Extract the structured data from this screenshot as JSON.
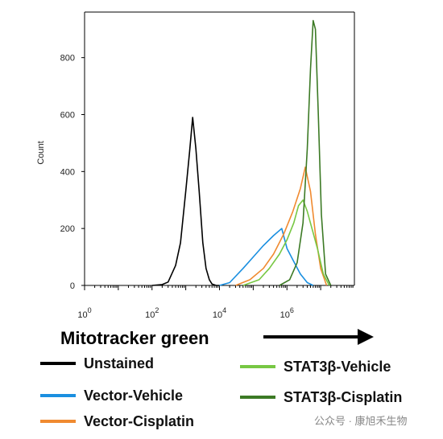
{
  "chart_data": {
    "type": "line",
    "title": "",
    "xlabel": "Mitotracker green",
    "ylabel": "Count",
    "x_scale": "log10",
    "xlim": [
      1,
      100000000
    ],
    "ylim": [
      0,
      960
    ],
    "x_ticks": [
      {
        "value": 1,
        "base": "10",
        "exp": "0"
      },
      {
        "value": 100,
        "base": "10",
        "exp": "2"
      },
      {
        "value": 10000,
        "base": "10",
        "exp": "4"
      },
      {
        "value": 1000000,
        "base": "10",
        "exp": "6"
      }
    ],
    "y_ticks": [
      0,
      200,
      400,
      600,
      800
    ],
    "y_tick_labels": [
      "0",
      "200",
      "400",
      "600",
      "800"
    ],
    "grid": false,
    "legend_position": "bottom",
    "series": [
      {
        "name": "Unstained",
        "color": "#000000",
        "x": [
          100,
          200,
          300,
          500,
          700,
          1000,
          1300,
          1600,
          2000,
          2500,
          3200,
          4000,
          5000,
          6000,
          8000,
          10000
        ],
        "y": [
          0,
          3,
          12,
          70,
          150,
          330,
          470,
          590,
          480,
          330,
          150,
          60,
          20,
          5,
          0,
          0
        ]
      },
      {
        "name": "Vector-Vehicle",
        "color": "#1a8fe0",
        "x": [
          10000,
          20000,
          50000,
          100000,
          200000,
          400000,
          700000,
          1000000,
          1500000,
          2500000,
          4000000,
          6000000
        ],
        "y": [
          0,
          10,
          60,
          100,
          140,
          175,
          200,
          130,
          90,
          40,
          10,
          0
        ]
      },
      {
        "name": "Vector-Cisplatin",
        "color": "#f08a30",
        "x": [
          30000,
          80000,
          200000,
          400000,
          800000,
          1500000,
          2500000,
          3500000,
          5000000,
          7000000,
          10000000,
          15000000
        ],
        "y": [
          0,
          20,
          60,
          110,
          180,
          260,
          340,
          415,
          330,
          180,
          60,
          0
        ]
      },
      {
        "name": "STAT3β-Vehicle",
        "color": "#77c743",
        "x": [
          50000,
          150000,
          300000,
          600000,
          1000000,
          1600000,
          2200000,
          3000000,
          4000000,
          5500000,
          8000000,
          12000000,
          18000000
        ],
        "y": [
          0,
          20,
          60,
          110,
          160,
          220,
          280,
          300,
          260,
          200,
          130,
          40,
          0
        ]
      },
      {
        "name": "STAT3β-Cisplatin",
        "color": "#3c7a25",
        "x": [
          600000,
          1200000,
          2000000,
          3000000,
          4000000,
          5000000,
          6000000,
          7000000,
          8500000,
          10500000,
          14000000,
          20000000
        ],
        "y": [
          0,
          20,
          80,
          220,
          480,
          760,
          930,
          900,
          600,
          250,
          40,
          0
        ]
      }
    ]
  },
  "watermark": {
    "text": "公众号 · 康旭禾生物"
  }
}
